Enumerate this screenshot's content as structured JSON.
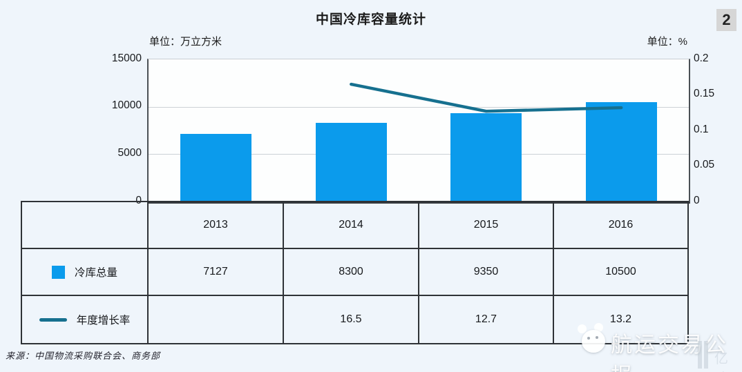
{
  "page": {
    "badge": "2",
    "title": "中国冷库容量统计",
    "unit_left": "单位：万立方米",
    "unit_right": "单位：%",
    "source": "来源：中国物流采购联合会、商务部",
    "watermark_main": "航运交易公报",
    "watermark_small": "亿欧"
  },
  "chart_data": {
    "type": "bar",
    "title": "中国冷库容量统计",
    "categories": [
      "2013",
      "2014",
      "2015",
      "2016"
    ],
    "series": [
      {
        "name": "冷库总量",
        "kind": "bar",
        "axis": "left",
        "unit": "万立方米",
        "values": [
          7127,
          8300,
          9350,
          10500
        ],
        "color": "#0b9bec"
      },
      {
        "name": "年度增长率",
        "kind": "line",
        "axis": "right",
        "unit": "%",
        "values": [
          null,
          16.5,
          12.7,
          13.2
        ],
        "color": "#16708f"
      }
    ],
    "left_axis": {
      "min": 0,
      "max": 15000,
      "ticks": [
        "15000",
        "10000",
        "5000",
        "0"
      ]
    },
    "right_axis": {
      "min": 0,
      "max": 0.2,
      "ticks": [
        "0.2",
        "0.15",
        "0.1",
        "0.05",
        "0"
      ]
    },
    "grid": true,
    "legend_position": "table-left"
  },
  "table": {
    "years": [
      "2013",
      "2014",
      "2015",
      "2016"
    ],
    "rows": [
      {
        "label": "冷库总量",
        "values": [
          "7127",
          "8300",
          "9350",
          "10500"
        ]
      },
      {
        "label": "年度增长率",
        "values": [
          "",
          "16.5",
          "12.7",
          "13.2"
        ]
      }
    ]
  },
  "colors": {
    "background": "#eff5fb",
    "bar": "#0b9bec",
    "line": "#16708f",
    "border": "#2e3236",
    "badge_bg": "#d6d6d6"
  }
}
